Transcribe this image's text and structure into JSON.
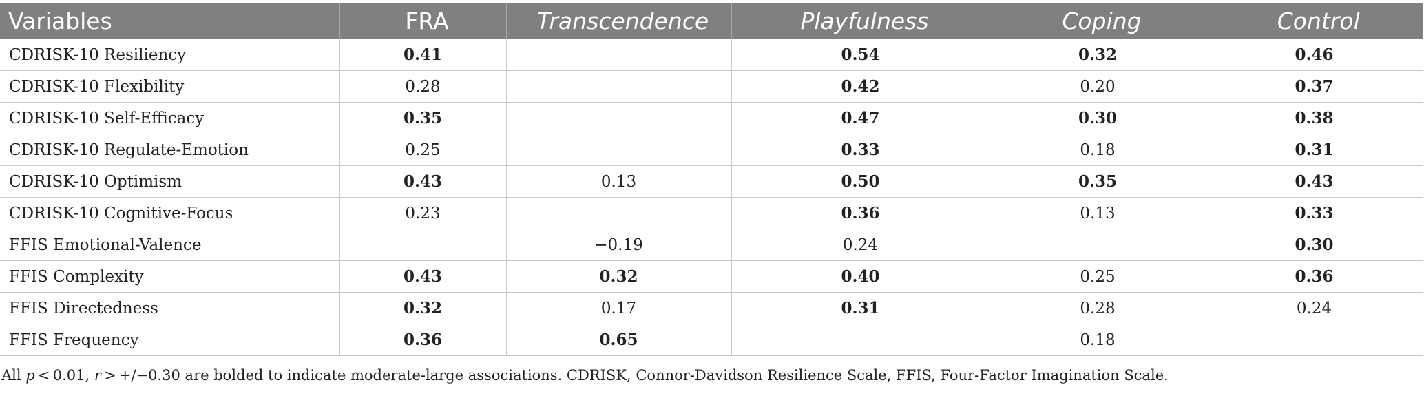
{
  "table": {
    "headers": [
      {
        "label": "Variables",
        "italic": false
      },
      {
        "label": "FRA",
        "italic": false
      },
      {
        "label": "Transcendence",
        "italic": true
      },
      {
        "label": "Playfulness",
        "italic": true
      },
      {
        "label": "Coping",
        "italic": true
      },
      {
        "label": "Control",
        "italic": true
      }
    ],
    "rows": [
      {
        "variable": "CDRISK-10 Resiliency",
        "cells": [
          {
            "value": "0.41",
            "bold": true
          },
          {
            "value": "",
            "bold": false
          },
          {
            "value": "0.54",
            "bold": true
          },
          {
            "value": "0.32",
            "bold": true
          },
          {
            "value": "0.46",
            "bold": true
          }
        ]
      },
      {
        "variable": "CDRISK-10 Flexibility",
        "cells": [
          {
            "value": "0.28",
            "bold": false
          },
          {
            "value": "",
            "bold": false
          },
          {
            "value": "0.42",
            "bold": true
          },
          {
            "value": "0.20",
            "bold": false
          },
          {
            "value": "0.37",
            "bold": true
          }
        ]
      },
      {
        "variable": "CDRISK-10 Self-Efficacy",
        "cells": [
          {
            "value": "0.35",
            "bold": true
          },
          {
            "value": "",
            "bold": false
          },
          {
            "value": "0.47",
            "bold": true
          },
          {
            "value": "0.30",
            "bold": true
          },
          {
            "value": "0.38",
            "bold": true
          }
        ]
      },
      {
        "variable": "CDRISK-10 Regulate-Emotion",
        "cells": [
          {
            "value": "0.25",
            "bold": false
          },
          {
            "value": "",
            "bold": false
          },
          {
            "value": "0.33",
            "bold": true
          },
          {
            "value": "0.18",
            "bold": false
          },
          {
            "value": "0.31",
            "bold": true
          }
        ]
      },
      {
        "variable": "CDRISK-10 Optimism",
        "cells": [
          {
            "value": "0.43",
            "bold": true
          },
          {
            "value": "0.13",
            "bold": false
          },
          {
            "value": "0.50",
            "bold": true
          },
          {
            "value": "0.35",
            "bold": true
          },
          {
            "value": "0.43",
            "bold": true
          }
        ]
      },
      {
        "variable": "CDRISK-10 Cognitive-Focus",
        "cells": [
          {
            "value": "0.23",
            "bold": false
          },
          {
            "value": "",
            "bold": false
          },
          {
            "value": "0.36",
            "bold": true
          },
          {
            "value": "0.13",
            "bold": false
          },
          {
            "value": "0.33",
            "bold": true
          }
        ]
      },
      {
        "variable": "FFIS Emotional-Valence",
        "cells": [
          {
            "value": "",
            "bold": false
          },
          {
            "value": "−0.19",
            "bold": false
          },
          {
            "value": "0.24",
            "bold": false
          },
          {
            "value": "",
            "bold": false
          },
          {
            "value": "0.30",
            "bold": true
          }
        ]
      },
      {
        "variable": "FFIS Complexity",
        "cells": [
          {
            "value": "0.43",
            "bold": true
          },
          {
            "value": "0.32",
            "bold": true
          },
          {
            "value": "0.40",
            "bold": true
          },
          {
            "value": "0.25",
            "bold": false
          },
          {
            "value": "0.36",
            "bold": true
          }
        ]
      },
      {
        "variable": "FFIS Directedness",
        "cells": [
          {
            "value": "0.32",
            "bold": true
          },
          {
            "value": "0.17",
            "bold": false
          },
          {
            "value": "0.31",
            "bold": true
          },
          {
            "value": "0.28",
            "bold": false
          },
          {
            "value": "0.24",
            "bold": false
          }
        ]
      },
      {
        "variable": "FFIS Frequency",
        "cells": [
          {
            "value": "0.36",
            "bold": true
          },
          {
            "value": "0.65",
            "bold": true
          },
          {
            "value": "",
            "bold": false
          },
          {
            "value": "0.18",
            "bold": false
          },
          {
            "value": "",
            "bold": false
          }
        ]
      }
    ]
  },
  "footnote": {
    "part1": "All ",
    "p_symbol": "p",
    "part2": " < 0.01, ",
    "r_symbol": "r",
    "part3": " > +/−0.30 are bolded to indicate moderate-large associations. CDRISK, Connor-Davidson Resilience Scale, FFIS, Four-Factor Imagination Scale."
  }
}
